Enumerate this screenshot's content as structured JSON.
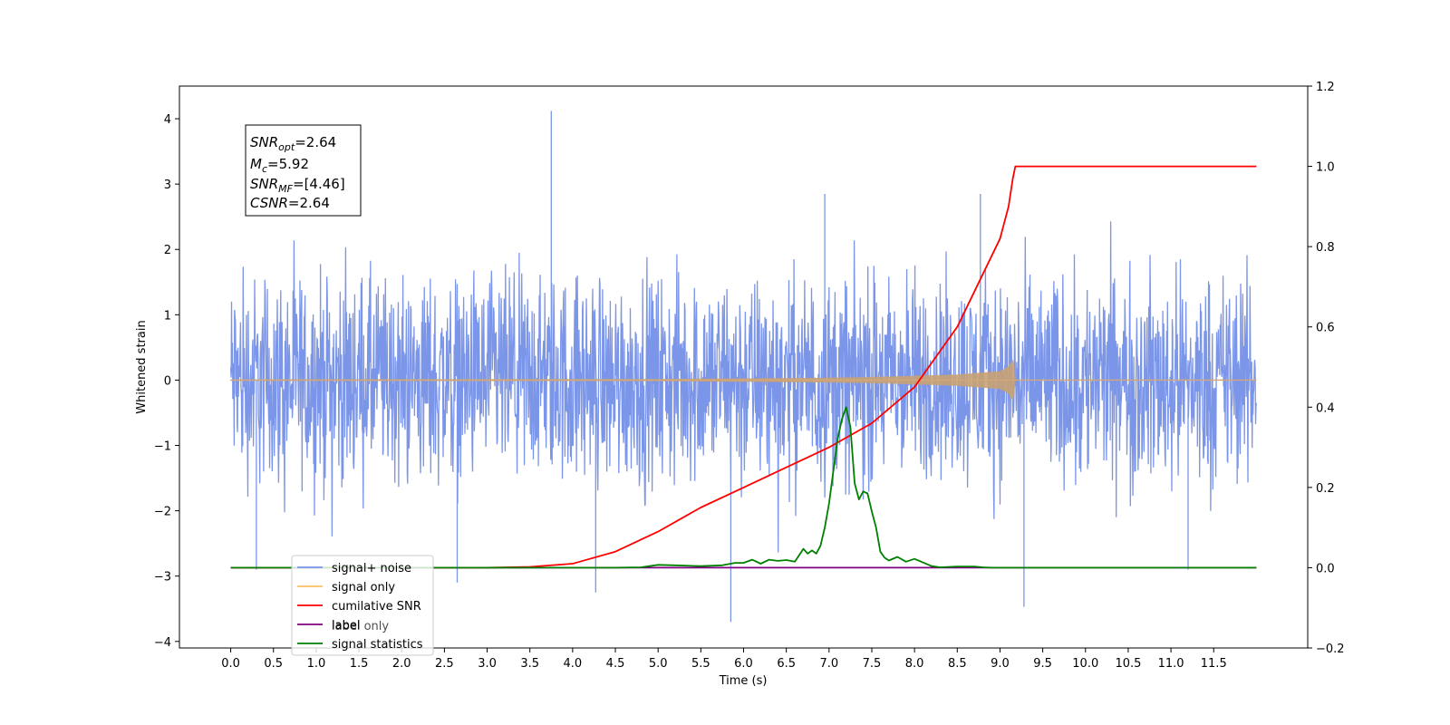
{
  "chart_data": {
    "type": "line",
    "title": "",
    "xlabel": "Time (s)",
    "ylabel": "Whitened strain",
    "xlim": [
      -0.6,
      12.6
    ],
    "ylim_left": [
      -4.1,
      4.5
    ],
    "ylim_right": [
      -0.2,
      1.2
    ],
    "x_ticks": [
      "0.0",
      "0.5",
      "1.0",
      "1.5",
      "2.0",
      "2.5",
      "3.0",
      "3.5",
      "4.0",
      "4.5",
      "5.0",
      "5.5",
      "6.0",
      "6.5",
      "7.0",
      "7.5",
      "8.0",
      "8.5",
      "9.0",
      "9.5",
      "10.0",
      "10.5",
      "11.0",
      "11.5"
    ],
    "y_ticks_left": [
      "−4",
      "−3",
      "−2",
      "−1",
      "0",
      "1",
      "2",
      "3",
      "4"
    ],
    "y_ticks_right": [
      "−0.2",
      "0.0",
      "0.2",
      "0.4",
      "0.6",
      "0.8",
      "1.0",
      "1.2"
    ],
    "grid": false,
    "legend_position": "lower-left",
    "annotation": {
      "line1": {
        "base": "SNR",
        "sub": "opt",
        "rest": "=2.64"
      },
      "line2": {
        "base": "M",
        "sub": "c",
        "rest": "=5.92"
      },
      "line3": {
        "base": "SNR",
        "sub": "MF",
        "rest": "=[4.46]"
      },
      "line4": {
        "base": "CSNR",
        "sub": "",
        "rest": "=2.64"
      }
    },
    "series": [
      {
        "name": "signal+ noise",
        "axis": "left",
        "color": "#7893e8",
        "noise_envelope": [
          -2.3,
          2.3
        ],
        "x_range": [
          0.0,
          12.0
        ],
        "spikes": [
          [
            3.75,
            4.12
          ],
          [
            5.85,
            -3.7
          ],
          [
            9.28,
            -3.47
          ],
          [
            4.27,
            -3.25
          ],
          [
            2.65,
            -3.1
          ],
          [
            0.3,
            -2.9
          ],
          [
            6.95,
            2.85
          ],
          [
            8.77,
            2.85
          ],
          [
            11.2,
            -2.9
          ]
        ]
      },
      {
        "name": "signal only",
        "axis": "left",
        "color": "#ffc066",
        "chirp_x": [
          0.0,
          5.0,
          6.0,
          7.0,
          7.5,
          8.0,
          8.5,
          9.0,
          9.1,
          9.15,
          9.18,
          12.0
        ],
        "chirp_amp": [
          0.005,
          0.01,
          0.02,
          0.03,
          0.04,
          0.06,
          0.08,
          0.13,
          0.2,
          0.3,
          0.0,
          0.0
        ]
      },
      {
        "name": "cumilative SNR",
        "axis": "right",
        "color": "#ff0000",
        "x": [
          0.0,
          3.0,
          3.5,
          4.0,
          4.5,
          5.0,
          5.5,
          6.0,
          6.5,
          7.0,
          7.5,
          8.0,
          8.5,
          9.0,
          9.1,
          9.15,
          9.18,
          12.0
        ],
        "y": [
          0.0,
          0.0,
          0.002,
          0.01,
          0.04,
          0.09,
          0.15,
          0.2,
          0.25,
          0.3,
          0.36,
          0.45,
          0.6,
          0.82,
          0.9,
          0.97,
          1.0,
          1.0
        ]
      },
      {
        "name": "label",
        "axis": "right",
        "color": "#800080",
        "x": [
          0.0,
          12.0
        ],
        "y": [
          0.0,
          0.0
        ]
      },
      {
        "name": "signal statistics",
        "axis": "right",
        "color": "#008000",
        "x": [
          0.0,
          4.5,
          4.8,
          5.0,
          5.2,
          5.5,
          5.75,
          5.9,
          6.0,
          6.1,
          6.2,
          6.3,
          6.4,
          6.5,
          6.6,
          6.7,
          6.75,
          6.8,
          6.85,
          6.9,
          6.95,
          7.0,
          7.05,
          7.1,
          7.15,
          7.2,
          7.25,
          7.3,
          7.35,
          7.4,
          7.45,
          7.5,
          7.55,
          7.6,
          7.65,
          7.7,
          7.8,
          7.9,
          8.0,
          8.1,
          8.2,
          8.3,
          8.5,
          8.7,
          8.8,
          8.9,
          9.1,
          12.0
        ],
        "y": [
          0.0,
          0.0,
          0.001,
          0.007,
          0.006,
          0.004,
          0.006,
          0.012,
          0.012,
          0.02,
          0.01,
          0.02,
          0.017,
          0.019,
          0.015,
          0.047,
          0.035,
          0.043,
          0.035,
          0.055,
          0.1,
          0.16,
          0.24,
          0.32,
          0.37,
          0.4,
          0.35,
          0.21,
          0.17,
          0.19,
          0.185,
          0.14,
          0.1,
          0.04,
          0.025,
          0.018,
          0.027,
          0.015,
          0.022,
          0.013,
          0.004,
          0.001,
          0.003,
          0.003,
          0.001,
          0.0,
          0.0,
          0.0
        ]
      }
    ],
    "overlay_legend_fragments": [
      "label only"
    ]
  }
}
